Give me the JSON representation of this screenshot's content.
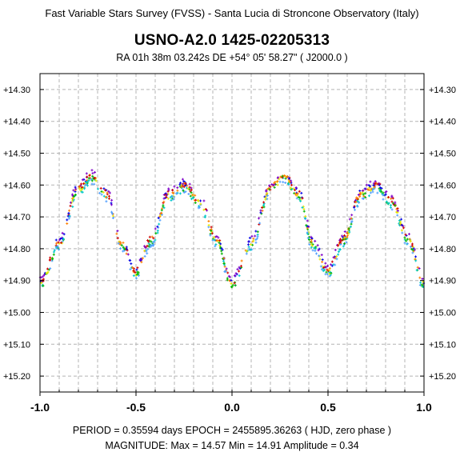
{
  "header": {
    "survey_line": "Fast Variable Stars Survey (FVSS) - Santa Lucia di Stroncone Observatory (Italy)",
    "star_name": "USNO-A2.0  1425-02205313",
    "coords_line": "RA  01h 38m 03.242s    DE   +54° 05' 58.27\"     ( J2000.0 )"
  },
  "footer": {
    "period_line": "PERIOD = 0.35594 days     EPOCH = 2455895.36263   ( HJD, zero phase )",
    "magnitude_line": "MAGNITUDE:  Max = 14.57     Min = 14.91     Amplitude = 0.34"
  },
  "chart_data": {
    "type": "scatter",
    "title": "USNO-A2.0  1425-02205313",
    "xlabel": "",
    "ylabel": "",
    "xlim": [
      -1.0,
      1.0
    ],
    "ylim": [
      15.25,
      14.25
    ],
    "y_inverted": true,
    "x_ticks": [
      "-1.0",
      "-0.5",
      "0.0",
      "0.5",
      "1.0"
    ],
    "y_ticks": [
      "+14.30",
      "+14.40",
      "+14.50",
      "+14.60",
      "+14.70",
      "+14.80",
      "+14.90",
      "+15.00",
      "+15.10",
      "+15.20"
    ],
    "grid": true,
    "grid_style": "dashed",
    "colors": [
      "#7f00c8",
      "#0000e6",
      "#d00000",
      "#ff7f00",
      "#e6e600",
      "#00b400",
      "#00c8c8",
      "#50a0ff"
    ],
    "phased_light_curve": [
      {
        "phase": -1.0,
        "mag": 14.91
      },
      {
        "phase": -0.9,
        "mag": 14.78
      },
      {
        "phase": -0.8,
        "mag": 14.61
      },
      {
        "phase": -0.73,
        "mag": 14.57
      },
      {
        "phase": -0.65,
        "mag": 14.63
      },
      {
        "phase": -0.58,
        "mag": 14.78
      },
      {
        "phase": -0.5,
        "mag": 14.87
      },
      {
        "phase": -0.42,
        "mag": 14.77
      },
      {
        "phase": -0.33,
        "mag": 14.63
      },
      {
        "phase": -0.25,
        "mag": 14.6
      },
      {
        "phase": -0.17,
        "mag": 14.65
      },
      {
        "phase": -0.08,
        "mag": 14.77
      },
      {
        "phase": 0.0,
        "mag": 14.91
      },
      {
        "phase": 0.1,
        "mag": 14.78
      },
      {
        "phase": 0.2,
        "mag": 14.61
      },
      {
        "phase": 0.27,
        "mag": 14.57
      },
      {
        "phase": 0.35,
        "mag": 14.63
      },
      {
        "phase": 0.42,
        "mag": 14.78
      },
      {
        "phase": 0.5,
        "mag": 14.87
      },
      {
        "phase": 0.58,
        "mag": 14.77
      },
      {
        "phase": 0.67,
        "mag": 14.63
      },
      {
        "phase": 0.75,
        "mag": 14.6
      },
      {
        "phase": 0.83,
        "mag": 14.65
      },
      {
        "phase": 0.92,
        "mag": 14.77
      },
      {
        "phase": 1.0,
        "mag": 14.91
      }
    ]
  }
}
